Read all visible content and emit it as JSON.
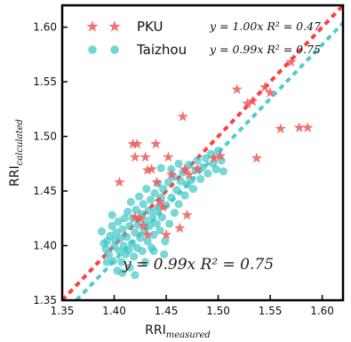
{
  "chart_data": {
    "type": "scatter",
    "xlabel": "RRI",
    "xlabel_sub": "measured",
    "ylabel": "RRI",
    "ylabel_sub": "calculated",
    "xlim": [
      1.35,
      1.62
    ],
    "ylim": [
      1.35,
      1.62
    ],
    "x_ticks": [
      1.35,
      1.4,
      1.45,
      1.5,
      1.55,
      1.6
    ],
    "y_ticks": [
      1.35,
      1.4,
      1.45,
      1.5,
      1.55,
      1.6
    ],
    "x_tick_labels": [
      "1.35",
      "1.40",
      "1.45",
      "1.50",
      "1.55",
      "1.60"
    ],
    "y_tick_labels": [
      "1.35",
      "1.40",
      "1.45",
      "1.50",
      "1.55",
      "1.60"
    ],
    "legend_position": "top",
    "annotation": "y = 0.99x  R² = 0.75",
    "series": [
      {
        "name": "PKU",
        "marker": "star",
        "color": "#f05a5a",
        "fit_slope": 1.0,
        "legend_fit": "y = 1.00x  R² = 0.47",
        "points": [
          [
            1.405,
            1.458
          ],
          [
            1.418,
            1.493
          ],
          [
            1.422,
            1.493
          ],
          [
            1.42,
            1.481
          ],
          [
            1.425,
            1.425
          ],
          [
            1.43,
            1.481
          ],
          [
            1.432,
            1.469
          ],
          [
            1.44,
            1.493
          ],
          [
            1.436,
            1.47
          ],
          [
            1.441,
            1.458
          ],
          [
            1.444,
            1.44
          ],
          [
            1.447,
            1.435
          ],
          [
            1.452,
            1.481
          ],
          [
            1.455,
            1.465
          ],
          [
            1.463,
            1.416
          ],
          [
            1.466,
            1.518
          ],
          [
            1.468,
            1.47
          ],
          [
            1.472,
            1.465
          ],
          [
            1.48,
            1.47
          ],
          [
            1.496,
            1.48
          ],
          [
            1.502,
            1.482
          ],
          [
            1.518,
            1.543
          ],
          [
            1.528,
            1.53
          ],
          [
            1.533,
            1.532
          ],
          [
            1.537,
            1.48
          ],
          [
            1.545,
            1.545
          ],
          [
            1.55,
            1.54
          ],
          [
            1.56,
            1.507
          ],
          [
            1.57,
            1.568
          ],
          [
            1.578,
            1.508
          ],
          [
            1.586,
            1.508
          ],
          [
            1.42,
            1.426
          ],
          [
            1.428,
            1.418
          ],
          [
            1.45,
            1.41
          ],
          [
            1.47,
            1.428
          ],
          [
            1.432,
            1.41
          ]
        ]
      },
      {
        "name": "Taizhou",
        "marker": "circle",
        "color": "#3ec6c6",
        "fit_slope": 0.99,
        "legend_fit": "y = 0.99x  R² = 0.75",
        "points": [
          [
            1.388,
            1.413
          ],
          [
            1.39,
            1.402
          ],
          [
            1.392,
            1.397
          ],
          [
            1.393,
            1.404
          ],
          [
            1.395,
            1.392
          ],
          [
            1.396,
            1.409
          ],
          [
            1.398,
            1.418
          ],
          [
            1.399,
            1.386
          ],
          [
            1.4,
            1.399
          ],
          [
            1.401,
            1.405
          ],
          [
            1.402,
            1.412
          ],
          [
            1.403,
            1.377
          ],
          [
            1.404,
            1.422
          ],
          [
            1.405,
            1.395
          ],
          [
            1.406,
            1.407
          ],
          [
            1.407,
            1.385
          ],
          [
            1.408,
            1.415
          ],
          [
            1.409,
            1.4
          ],
          [
            1.41,
            1.425
          ],
          [
            1.411,
            1.392
          ],
          [
            1.412,
            1.408
          ],
          [
            1.413,
            1.431
          ],
          [
            1.414,
            1.396
          ],
          [
            1.415,
            1.418
          ],
          [
            1.416,
            1.44
          ],
          [
            1.417,
            1.402
          ],
          [
            1.418,
            1.425
          ],
          [
            1.419,
            1.39
          ],
          [
            1.42,
            1.412
          ],
          [
            1.421,
            1.433
          ],
          [
            1.422,
            1.398
          ],
          [
            1.423,
            1.419
          ],
          [
            1.424,
            1.445
          ],
          [
            1.425,
            1.407
          ],
          [
            1.426,
            1.429
          ],
          [
            1.427,
            1.395
          ],
          [
            1.428,
            1.438
          ],
          [
            1.429,
            1.413
          ],
          [
            1.43,
            1.423
          ],
          [
            1.431,
            1.452
          ],
          [
            1.432,
            1.404
          ],
          [
            1.433,
            1.432
          ],
          [
            1.434,
            1.418
          ],
          [
            1.435,
            1.442
          ],
          [
            1.436,
            1.398
          ],
          [
            1.437,
            1.426
          ],
          [
            1.438,
            1.41
          ],
          [
            1.439,
            1.448
          ],
          [
            1.44,
            1.432
          ],
          [
            1.441,
            1.42
          ],
          [
            1.442,
            1.457
          ],
          [
            1.443,
            1.436
          ],
          [
            1.444,
            1.414
          ],
          [
            1.445,
            1.444
          ],
          [
            1.446,
            1.426
          ],
          [
            1.447,
            1.452
          ],
          [
            1.449,
            1.404
          ],
          [
            1.45,
            1.437
          ],
          [
            1.452,
            1.458
          ],
          [
            1.453,
            1.42
          ],
          [
            1.455,
            1.444
          ],
          [
            1.457,
            1.463
          ],
          [
            1.458,
            1.43
          ],
          [
            1.46,
            1.451
          ],
          [
            1.462,
            1.438
          ],
          [
            1.464,
            1.459
          ],
          [
            1.466,
            1.467
          ],
          [
            1.468,
            1.446
          ],
          [
            1.47,
            1.456
          ],
          [
            1.472,
            1.474
          ],
          [
            1.474,
            1.46
          ],
          [
            1.476,
            1.452
          ],
          [
            1.478,
            1.469
          ],
          [
            1.48,
            1.478
          ],
          [
            1.483,
            1.461
          ],
          [
            1.485,
            1.472
          ],
          [
            1.488,
            1.48
          ],
          [
            1.49,
            1.466
          ],
          [
            1.493,
            1.484
          ],
          [
            1.495,
            1.475
          ],
          [
            1.498,
            1.47
          ],
          [
            1.5,
            1.487
          ],
          [
            1.503,
            1.478
          ],
          [
            1.505,
            1.468
          ],
          [
            1.408,
            1.375
          ],
          [
            1.415,
            1.38
          ],
          [
            1.398,
            1.428
          ],
          [
            1.393,
            1.385
          ],
          [
            1.43,
            1.385
          ],
          [
            1.438,
            1.395
          ],
          [
            1.42,
            1.373
          ],
          [
            1.448,
            1.392
          ],
          [
            1.455,
            1.47
          ],
          [
            1.462,
            1.475
          ],
          [
            1.445,
            1.471
          ]
        ]
      }
    ]
  }
}
